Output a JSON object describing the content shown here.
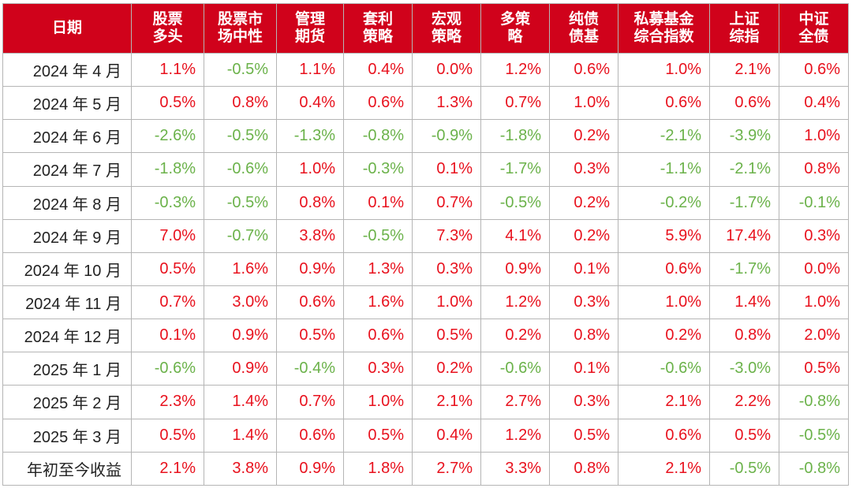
{
  "chart_data": {
    "type": "table",
    "title": "",
    "colors": {
      "header_bg": "#d0021b",
      "header_text": "#ffffff",
      "positive": "#e8111d",
      "negative": "#6bb24a"
    },
    "columns": [
      "日期",
      "股票\n多头",
      "股票市\n场中性",
      "管理\n期货",
      "套利\n策略",
      "宏观\n策略",
      "多策\n略",
      "纯债\n债基",
      "私募基金\n综合指数",
      "上证\n综指",
      "中证\n全债"
    ],
    "rows": [
      {
        "date": "2024 年 4 月",
        "values": [
          "1.1%",
          "-0.5%",
          "1.1%",
          "0.4%",
          "0.0%",
          "1.2%",
          "0.6%",
          "1.0%",
          "2.1%",
          "0.6%"
        ]
      },
      {
        "date": "2024 年 5 月",
        "values": [
          "0.5%",
          "0.8%",
          "0.4%",
          "0.6%",
          "1.3%",
          "0.7%",
          "1.0%",
          "0.6%",
          "0.6%",
          "0.4%"
        ]
      },
      {
        "date": "2024 年 6 月",
        "values": [
          "-2.6%",
          "-0.5%",
          "-1.3%",
          "-0.8%",
          "-0.9%",
          "-1.8%",
          "0.2%",
          "-2.1%",
          "-3.9%",
          "1.0%"
        ]
      },
      {
        "date": "2024 年 7 月",
        "values": [
          "-1.8%",
          "-0.6%",
          "1.0%",
          "-0.3%",
          "0.1%",
          "-1.7%",
          "0.3%",
          "-1.1%",
          "-2.1%",
          "0.8%"
        ]
      },
      {
        "date": "2024 年 8 月",
        "values": [
          "-0.3%",
          "-0.5%",
          "0.8%",
          "0.1%",
          "0.7%",
          "-0.5%",
          "0.2%",
          "-0.2%",
          "-1.7%",
          "-0.1%"
        ]
      },
      {
        "date": "2024 年 9 月",
        "values": [
          "7.0%",
          "-0.7%",
          "3.8%",
          "-0.5%",
          "7.3%",
          "4.1%",
          "0.2%",
          "5.9%",
          "17.4%",
          "0.3%"
        ]
      },
      {
        "date": "2024 年 10 月",
        "values": [
          "0.5%",
          "1.6%",
          "0.9%",
          "1.3%",
          "0.3%",
          "0.9%",
          "0.1%",
          "0.6%",
          "-1.7%",
          "0.0%"
        ]
      },
      {
        "date": "2024 年 11 月",
        "values": [
          "0.7%",
          "3.0%",
          "0.6%",
          "1.6%",
          "1.0%",
          "1.2%",
          "0.3%",
          "1.0%",
          "1.4%",
          "1.0%"
        ]
      },
      {
        "date": "2024 年 12 月",
        "values": [
          "0.1%",
          "0.9%",
          "0.5%",
          "0.6%",
          "0.5%",
          "0.2%",
          "0.8%",
          "0.2%",
          "0.8%",
          "2.0%"
        ]
      },
      {
        "date": "2025 年 1 月",
        "values": [
          "-0.6%",
          "0.9%",
          "-0.4%",
          "0.3%",
          "0.2%",
          "-0.6%",
          "0.1%",
          "-0.6%",
          "-3.0%",
          "0.5%"
        ]
      },
      {
        "date": "2025 年 2 月",
        "values": [
          "2.3%",
          "1.4%",
          "0.7%",
          "1.0%",
          "2.1%",
          "2.7%",
          "0.3%",
          "2.1%",
          "2.2%",
          "-0.8%"
        ]
      },
      {
        "date": "2025 年 3 月",
        "values": [
          "0.5%",
          "1.4%",
          "0.6%",
          "0.5%",
          "0.4%",
          "1.2%",
          "0.5%",
          "0.6%",
          "0.5%",
          "-0.5%"
        ]
      },
      {
        "date": "年初至今收益",
        "values": [
          "2.1%",
          "3.8%",
          "0.9%",
          "1.8%",
          "2.7%",
          "3.3%",
          "0.8%",
          "2.1%",
          "-0.5%",
          "-0.8%"
        ]
      }
    ]
  }
}
